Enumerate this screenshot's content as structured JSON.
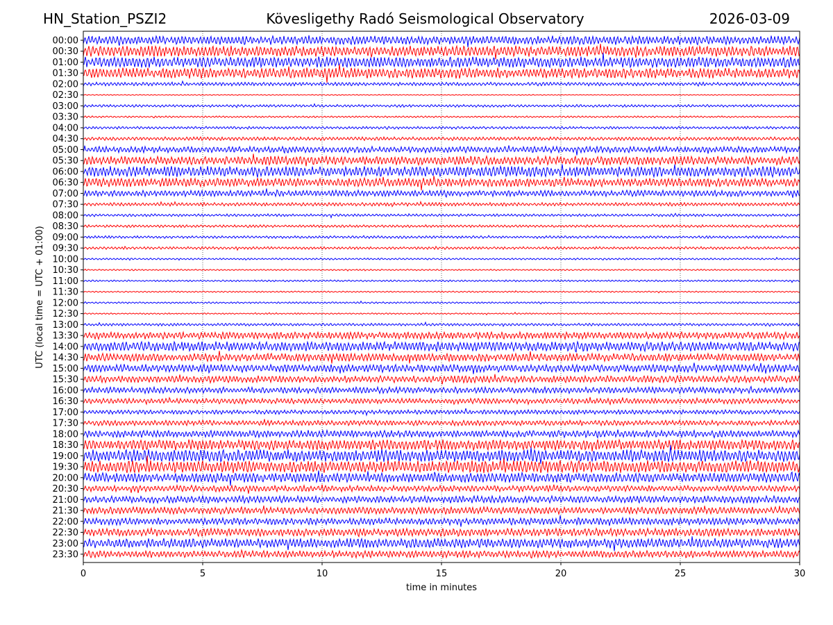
{
  "chart_data": {
    "type": "line",
    "title_left": "HN_Station_PSZI2",
    "title": "Kövesligethy Radó Seismological Observatory",
    "title_right": "2026-03-09",
    "xlabel": "time in minutes",
    "ylabel": "UTC (local time = UTC + 01:00)",
    "xlim": [
      0,
      30
    ],
    "xticks": [
      "0",
      "5",
      "10",
      "15",
      "20",
      "25",
      "30"
    ],
    "grid": "vertical dotted at 5-minute ticks",
    "colors": [
      "#0000ff",
      "#ff0000"
    ],
    "rows": [
      "00:00",
      "00:30",
      "01:00",
      "01:30",
      "02:00",
      "02:30",
      "03:00",
      "03:30",
      "04:00",
      "04:30",
      "05:00",
      "05:30",
      "06:00",
      "06:30",
      "07:00",
      "07:30",
      "08:00",
      "08:30",
      "09:00",
      "09:30",
      "10:00",
      "10:30",
      "11:00",
      "11:30",
      "12:00",
      "12:30",
      "13:00",
      "13:30",
      "14:00",
      "14:30",
      "15:00",
      "15:30",
      "16:00",
      "16:30",
      "17:00",
      "17:30",
      "18:00",
      "18:30",
      "19:00",
      "19:30",
      "20:00",
      "20:30",
      "21:00",
      "21:30",
      "22:00",
      "22:30",
      "23:00",
      "23:30"
    ],
    "relative_amplitude": [
      0.5,
      0.6,
      0.6,
      0.6,
      0.2,
      0.05,
      0.15,
      0.1,
      0.15,
      0.2,
      0.35,
      0.5,
      0.6,
      0.5,
      0.35,
      0.2,
      0.15,
      0.15,
      0.15,
      0.15,
      0.1,
      0.08,
      0.1,
      0.08,
      0.1,
      0.08,
      0.15,
      0.4,
      0.55,
      0.45,
      0.45,
      0.4,
      0.35,
      0.3,
      0.25,
      0.3,
      0.4,
      0.6,
      0.7,
      0.7,
      0.55,
      0.35,
      0.4,
      0.4,
      0.4,
      0.45,
      0.55,
      0.4
    ]
  }
}
